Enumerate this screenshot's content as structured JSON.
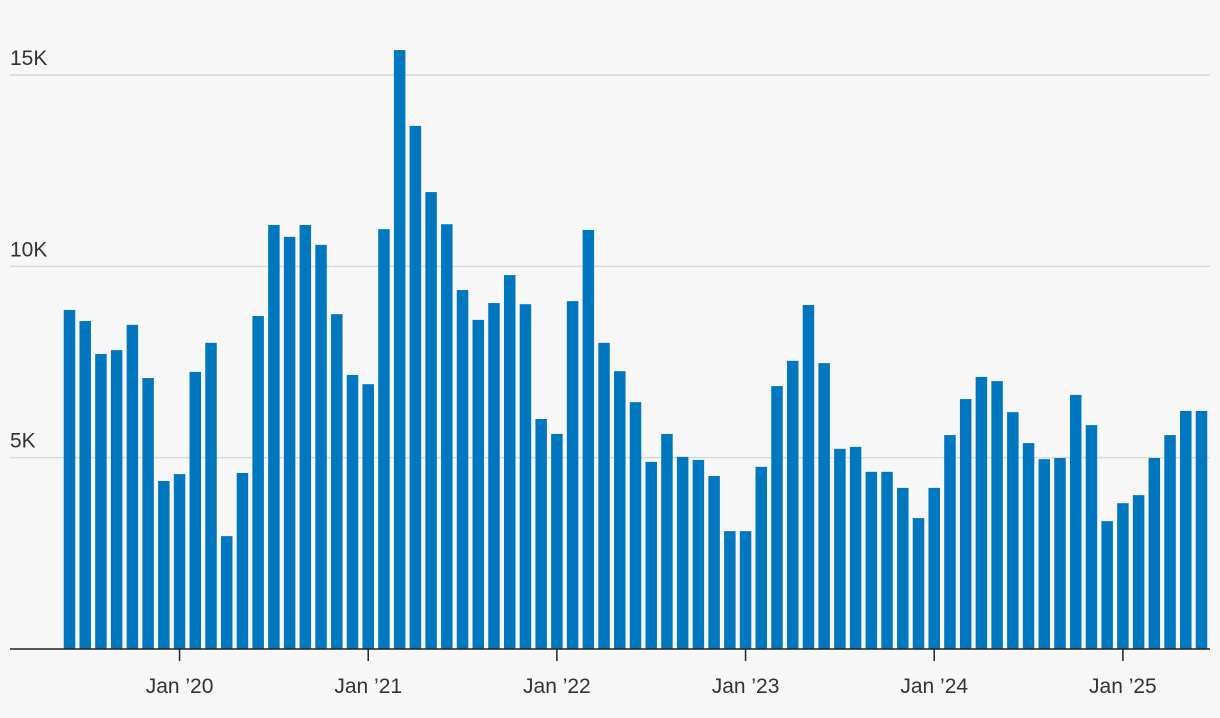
{
  "chart_data": {
    "type": "bar",
    "color": "#0077be",
    "grid": true,
    "categories": [
      null,
      null,
      null,
      null,
      null,
      null,
      null,
      "Jan ’20",
      null,
      null,
      null,
      null,
      null,
      null,
      null,
      null,
      null,
      null,
      null,
      "Jan ’21",
      null,
      null,
      null,
      null,
      null,
      null,
      null,
      null,
      null,
      null,
      null,
      "Jan ’22",
      null,
      null,
      null,
      null,
      null,
      null,
      null,
      null,
      null,
      null,
      null,
      "Jan ’23",
      null,
      null,
      null,
      null,
      null,
      null,
      null,
      null,
      null,
      null,
      null,
      "Jan ’24",
      null,
      null,
      null,
      null,
      null,
      null,
      null,
      null,
      null,
      null,
      null,
      "Jan ’25",
      null,
      null,
      null,
      null,
      null
    ],
    "values": [
      8860,
      8570,
      7710,
      7810,
      8470,
      7080,
      4390,
      4570,
      7240,
      8000,
      2950,
      4600,
      8700,
      11080,
      10770,
      11080,
      10560,
      8750,
      7160,
      6920,
      10970,
      15650,
      13670,
      11940,
      11100,
      9380,
      8600,
      9040,
      9770,
      9010,
      6010,
      5620,
      9090,
      10950,
      8000,
      7260,
      6450,
      4890,
      5620,
      5020,
      4940,
      4520,
      3080,
      3080,
      4760,
      6870,
      7530,
      8990,
      7470,
      5230,
      5280,
      4630,
      4630,
      4210,
      3420,
      4210,
      5590,
      6530,
      7110,
      7000,
      6190,
      5380,
      4960,
      4990,
      6640,
      5850,
      3340,
      3810,
      4020,
      4990,
      5590,
      6220,
      6220
    ],
    "ylim": [
      0,
      16000
    ],
    "yticks": [
      {
        "value": 5000,
        "label": "5K"
      },
      {
        "value": 10000,
        "label": "10K"
      },
      {
        "value": 15000,
        "label": "15K"
      }
    ]
  }
}
